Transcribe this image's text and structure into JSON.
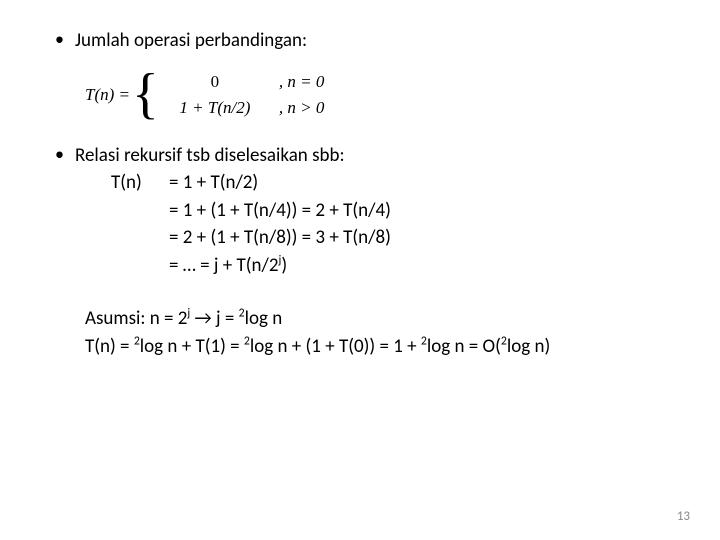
{
  "bullet1": "Jumlah operasi perbandingan:",
  "eq": {
    "lhs": "T(n) = ",
    "case1_left": "0",
    "case1_right": ", n = 0",
    "case2_left": "1 + T(n/2)",
    "case2_right": ", n > 0"
  },
  "bullet2": "Relasi rekursif tsb diselesaikan sbb:",
  "deriv": {
    "l1_left": "T(n)",
    "l1_right": "= 1 + T(n/2)",
    "l2": "= 1 + (1 + T(n/4)) = 2 + T(n/4)",
    "l3": "=  2 + (1 + T(n/8)) = 3 + T(n/8)",
    "l4a": "= … = j + T(n/2",
    "l4b": "j",
    "l4c": ")"
  },
  "asumsi": {
    "l1a": "Asumsi: n = 2",
    "l1b": "j",
    "l1c": " → j = ",
    "l1d": "2",
    "l1e": "log n",
    "l2a": "T(n) = ",
    "l2b": "2",
    "l2c": "log n + T(1) = ",
    "l2d": "2",
    "l2e": "log n + (1 + T(0)) = 1 + ",
    "l2f": "2",
    "l2g": "log n = O(",
    "l2h": "2",
    "l2i": "log n)"
  },
  "page": "13"
}
